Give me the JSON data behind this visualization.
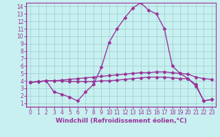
{
  "xlabel": "Windchill (Refroidissement éolien,°C)",
  "background_color": "#c8f0f0",
  "line_color": "#993399",
  "grid_color": "#99cccc",
  "xlim": [
    -0.5,
    23.5
  ],
  "ylim": [
    0.5,
    14.5
  ],
  "xticks": [
    0,
    1,
    2,
    3,
    4,
    5,
    6,
    7,
    8,
    9,
    10,
    11,
    12,
    13,
    14,
    15,
    16,
    17,
    18,
    19,
    20,
    21,
    22,
    23
  ],
  "yticks": [
    1,
    2,
    3,
    4,
    5,
    6,
    7,
    8,
    9,
    10,
    11,
    12,
    13,
    14
  ],
  "line1_x": [
    0,
    1,
    2,
    3,
    4,
    5,
    6,
    7,
    8,
    9,
    10,
    11,
    12,
    13,
    14,
    15,
    16,
    17,
    18,
    19,
    20,
    21,
    22,
    23
  ],
  "line1_y": [
    3.8,
    3.9,
    4.0,
    4.0,
    4.1,
    4.2,
    4.3,
    4.4,
    4.5,
    4.6,
    4.7,
    4.8,
    4.9,
    5.0,
    5.1,
    5.1,
    5.2,
    5.2,
    5.1,
    5.0,
    4.9,
    4.5,
    4.3,
    4.2
  ],
  "line2_x": [
    0,
    1,
    2,
    3,
    4,
    5,
    6,
    7,
    8,
    9,
    10,
    11,
    12,
    13,
    14,
    15,
    16,
    17,
    18,
    19,
    20,
    21,
    22,
    23
  ],
  "line2_y": [
    3.8,
    3.9,
    4.0,
    2.5,
    2.2,
    1.8,
    1.3,
    2.5,
    3.5,
    5.8,
    9.2,
    11.0,
    12.5,
    13.8,
    14.5,
    13.5,
    13.0,
    11.0,
    6.0,
    5.0,
    4.3,
    3.3,
    1.3,
    1.5
  ],
  "line3_x": [
    0,
    1,
    2,
    3,
    4,
    5,
    6,
    7,
    8,
    9,
    10,
    11,
    12,
    13,
    14,
    15,
    16,
    17,
    18,
    19,
    20,
    21,
    22,
    23
  ],
  "line3_y": [
    3.8,
    3.9,
    4.0,
    4.0,
    4.0,
    3.9,
    3.9,
    3.9,
    3.9,
    4.0,
    4.0,
    4.1,
    4.2,
    4.3,
    4.4,
    4.5,
    4.5,
    4.5,
    4.4,
    4.3,
    4.3,
    3.5,
    1.3,
    1.5
  ],
  "marker": "D",
  "markersize": 2.5,
  "linewidth": 1.0,
  "tick_fontsize": 5.5,
  "xlabel_fontsize": 6.5,
  "spine_color": "#993399"
}
